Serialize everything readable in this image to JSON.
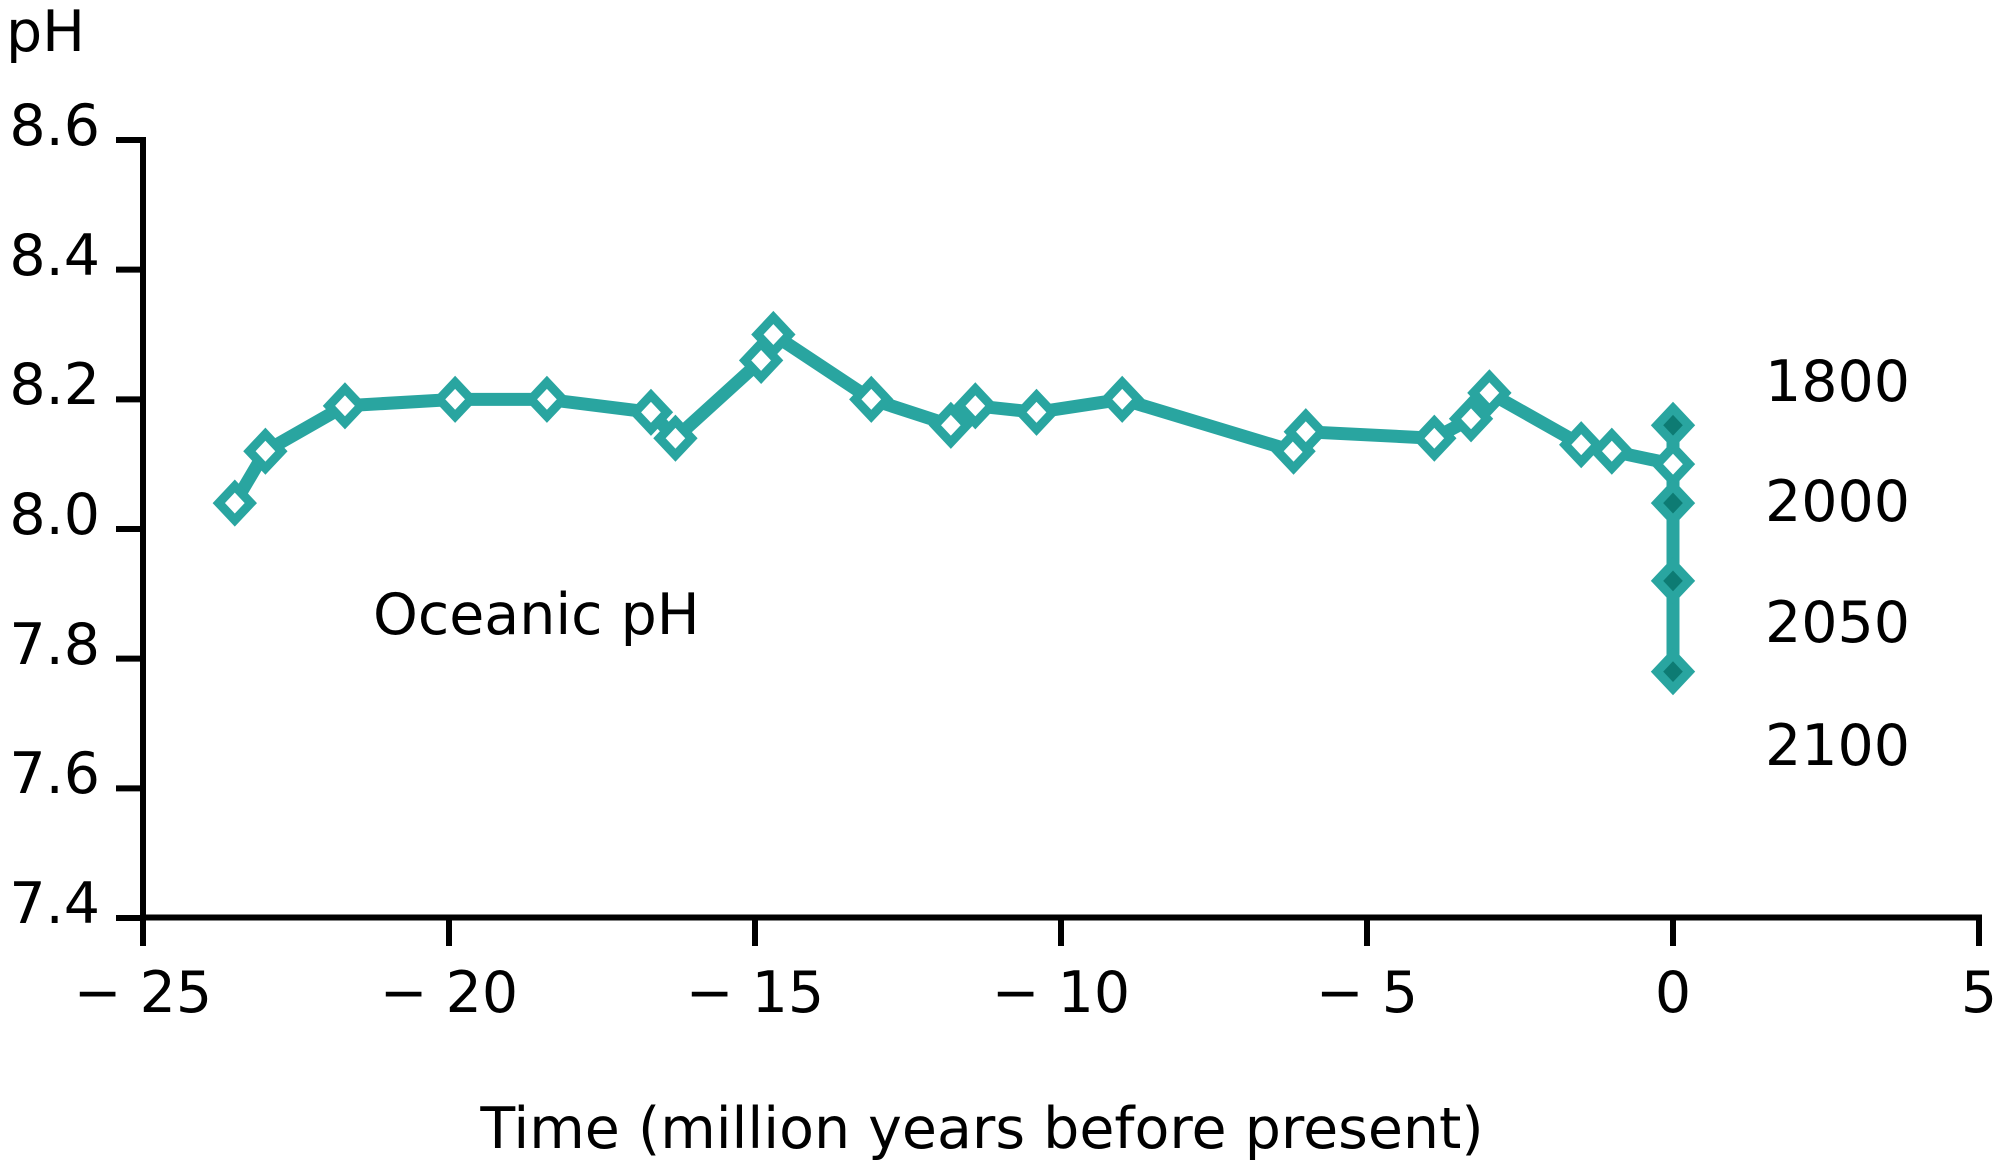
{
  "chart_data": {
    "type": "line",
    "annotation": "Oceanic pH",
    "ylabel": "pH",
    "xlabel": "Time (million years before present)",
    "xlim": [
      -25,
      5
    ],
    "ylim": [
      7.4,
      8.6
    ],
    "grid": false,
    "x_ticks": [
      -25,
      -20,
      -15,
      -10,
      -5,
      0,
      5
    ],
    "x_tick_labels": [
      "− 25",
      "− 20",
      "− 15",
      "− 10",
      "− 5",
      "0",
      "5"
    ],
    "y_ticks": [
      8.6,
      8.4,
      8.2,
      8.0,
      7.8,
      7.6,
      7.4
    ],
    "y_tick_labels": [
      "8.6",
      "8.4",
      "8.2",
      "8.0",
      "7.8",
      "7.6",
      "7.4"
    ],
    "series": [
      {
        "name": "oceanic-ph-paleo-record",
        "marker": "open-diamond",
        "points": [
          [
            -23.5,
            8.04
          ],
          [
            -23.0,
            8.12
          ],
          [
            -21.7,
            8.19
          ],
          [
            -19.9,
            8.2
          ],
          [
            -18.4,
            8.2
          ],
          [
            -16.7,
            8.18
          ],
          [
            -16.3,
            8.14
          ],
          [
            -14.9,
            8.26
          ],
          [
            -14.7,
            8.3
          ],
          [
            -13.1,
            8.2
          ],
          [
            -11.8,
            8.16
          ],
          [
            -11.4,
            8.19
          ],
          [
            -10.4,
            8.18
          ],
          [
            -9.0,
            8.2
          ],
          [
            -6.2,
            8.12
          ],
          [
            -6.0,
            8.15
          ],
          [
            -3.9,
            8.14
          ],
          [
            -3.3,
            8.17
          ],
          [
            -3.0,
            8.21
          ],
          [
            -1.5,
            8.13
          ],
          [
            -1.0,
            8.12
          ],
          [
            0,
            8.1
          ]
        ]
      },
      {
        "name": "modern-and-projected-ph",
        "marker": "filled-diamond",
        "points": [
          [
            0,
            8.16
          ],
          [
            0,
            8.04
          ],
          [
            0,
            7.92
          ],
          [
            0,
            7.78
          ]
        ],
        "point_labels": [
          "1800",
          "2000",
          "2050",
          "2100"
        ]
      }
    ],
    "colors": {
      "line": "#29a5a0",
      "open_marker_fill": "#ffffff",
      "solid_marker_fill": "#0d7b73",
      "axis": "#000000",
      "text": "#000000",
      "background": "#ffffff"
    }
  }
}
